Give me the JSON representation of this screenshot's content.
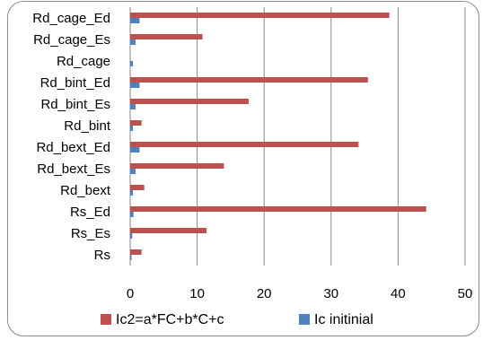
{
  "chart_data": {
    "type": "bar",
    "orientation": "horizontal",
    "categories": [
      "Rd_cage_Ed",
      "Rd_cage_Es",
      "Rd_cage",
      "Rd_bint_Ed",
      "Rd_bint_Es",
      "Rd_bint",
      "Rd_bext_Ed",
      "Rd_bext_Es",
      "Rd_bext",
      "Rs_Ed",
      "Rs_Es",
      "Rs"
    ],
    "series": [
      {
        "name": "Ic2=a*FC+b*C+c",
        "color": "#c0504d",
        "values": [
          38.7,
          10.8,
          0,
          35.5,
          17.7,
          1.7,
          34.1,
          14.0,
          2.1,
          44.2,
          11.4,
          1.7
        ]
      },
      {
        "name": "Ic initinial",
        "color": "#4f81bd",
        "values": [
          1.4,
          0.8,
          0.4,
          1.4,
          0.8,
          0.4,
          1.4,
          0.8,
          0.4,
          0.5,
          0.3,
          0.2
        ]
      }
    ],
    "xlim": [
      0,
      50
    ],
    "xticks": [
      0,
      10,
      20,
      30,
      40,
      50
    ],
    "grid": "vertical",
    "legend": "bottom",
    "title": "",
    "xlabel": "",
    "ylabel": ""
  }
}
